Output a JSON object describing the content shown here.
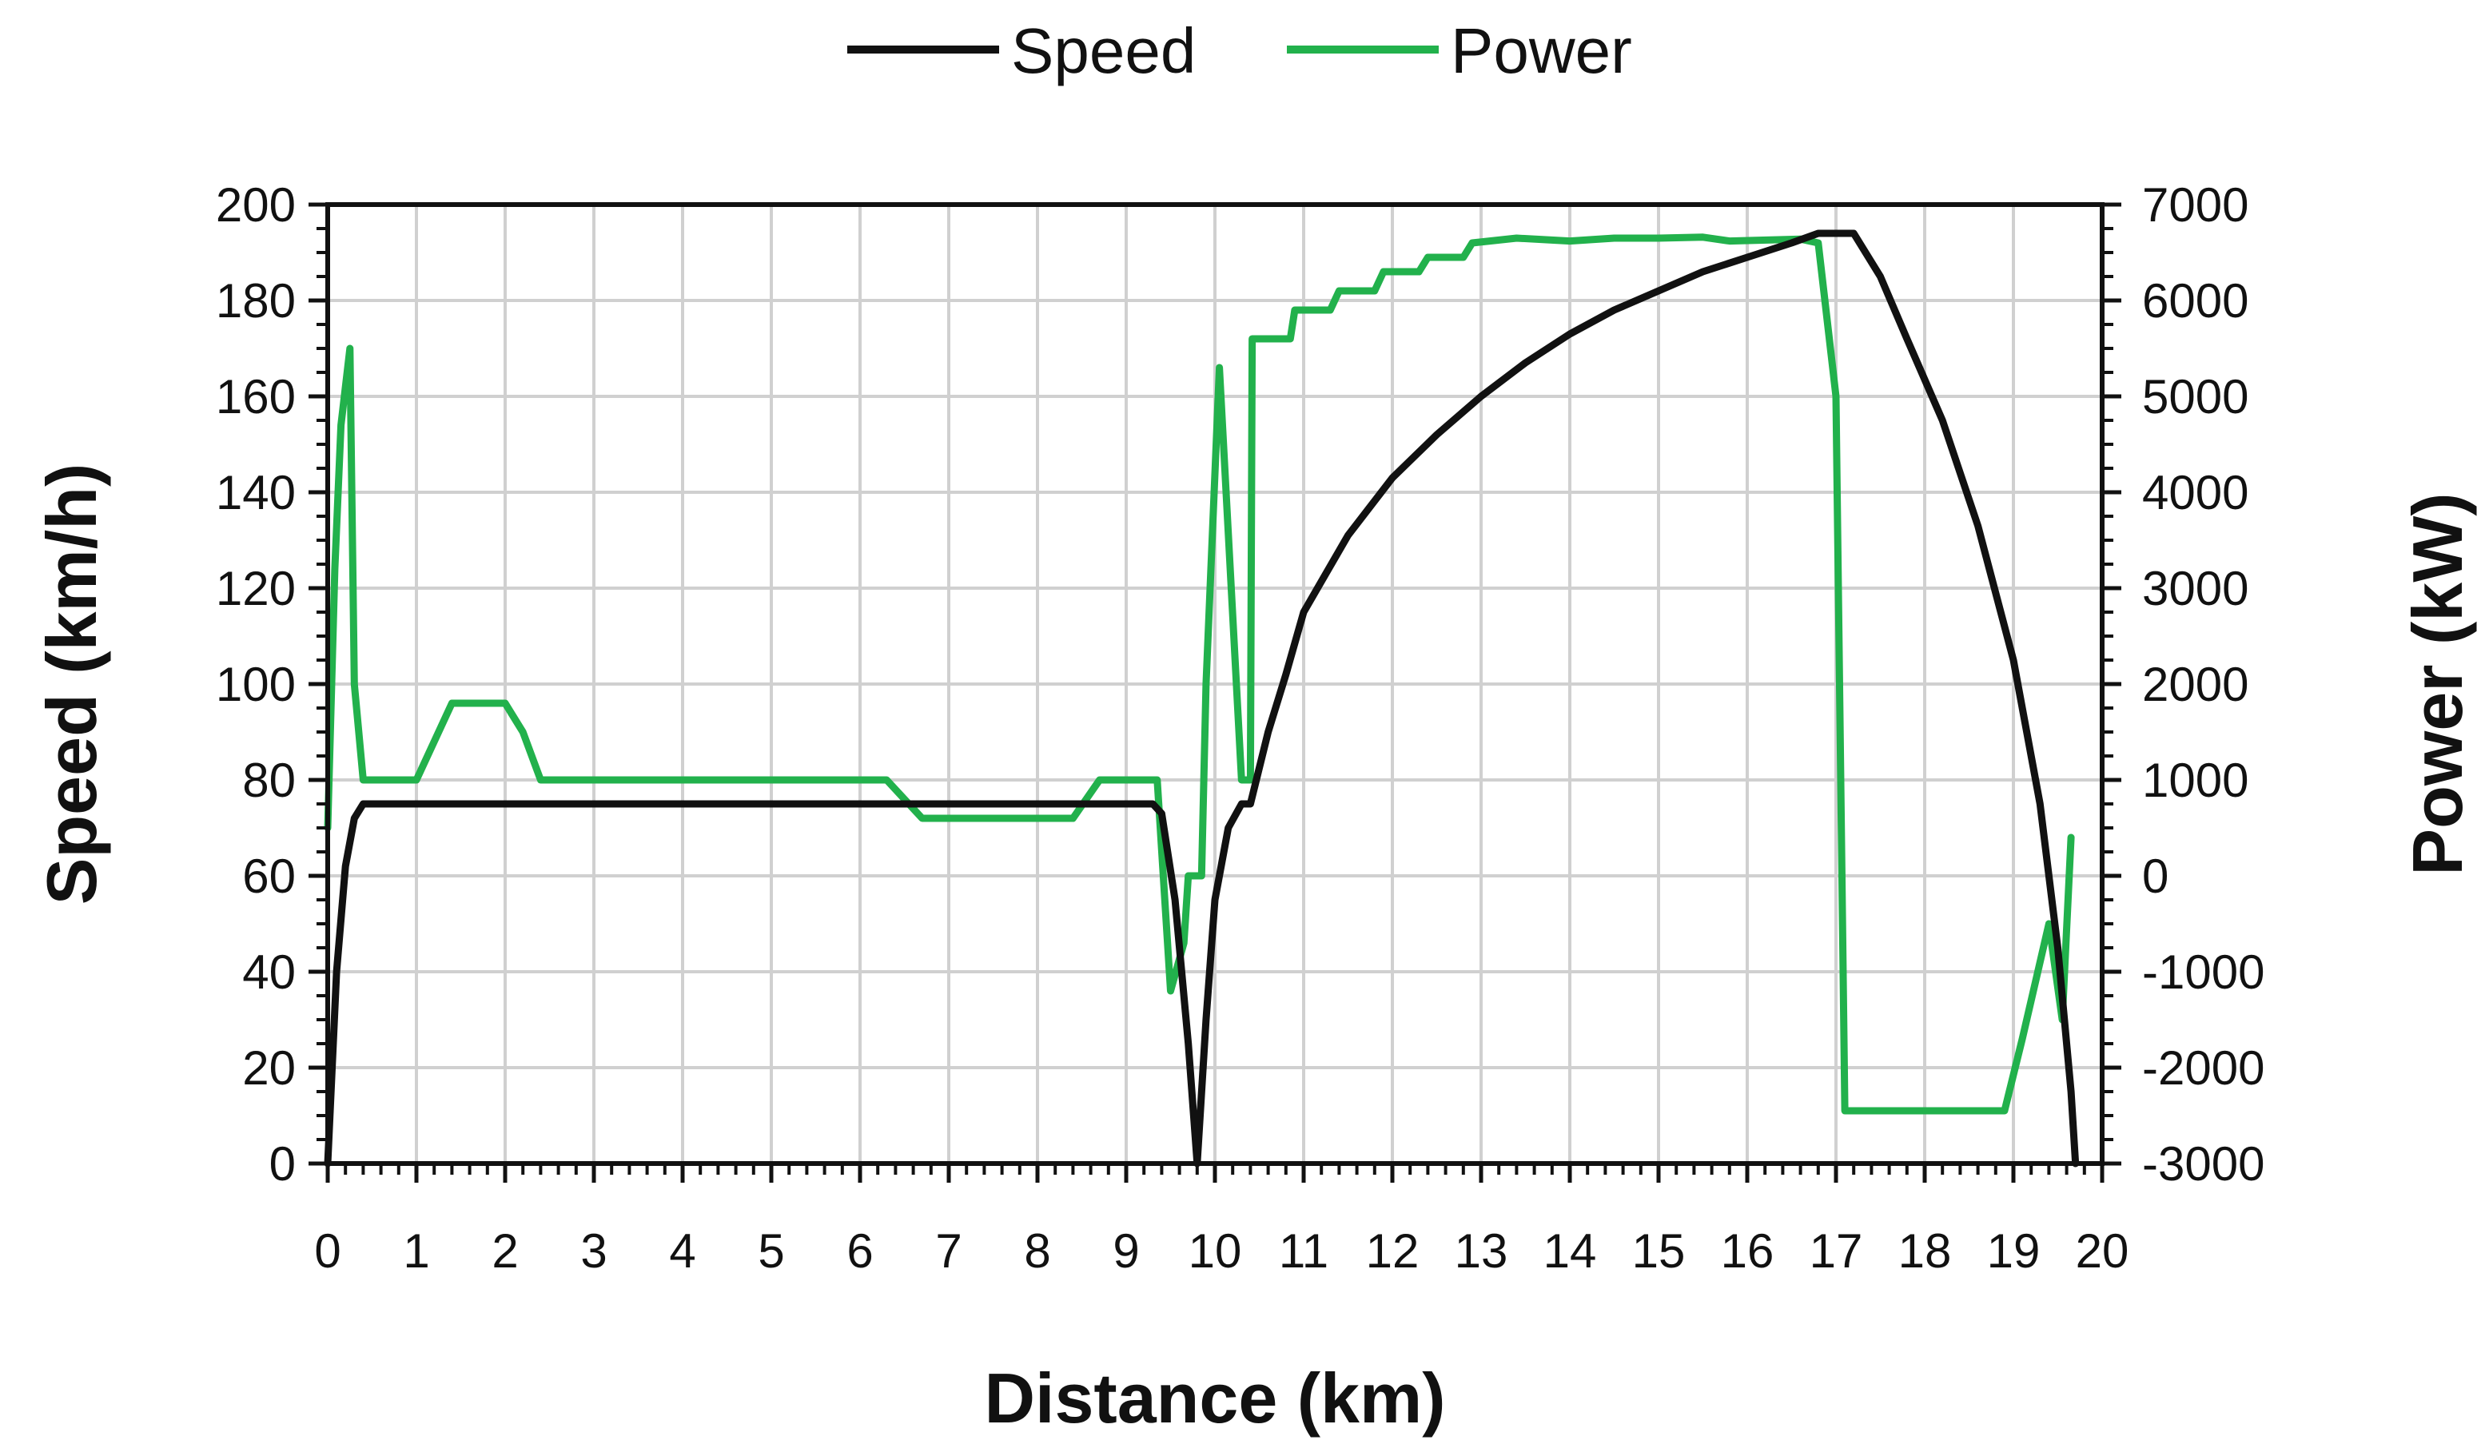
{
  "chart_data": {
    "type": "line",
    "title": "",
    "xlabel": "Distance (km)",
    "ylabel_left": "Speed (km/h)",
    "ylabel_right": "Power (kW)",
    "xlim": [
      0,
      20
    ],
    "ylim_left": [
      0,
      200
    ],
    "ylim_right": [
      -3000,
      7000
    ],
    "grid": true,
    "legend_position": "top-center",
    "x_ticks": [
      "0",
      "1",
      "2",
      "3",
      "4",
      "5",
      "6",
      "7",
      "8",
      "9",
      "10",
      "11",
      "12",
      "13",
      "14",
      "15",
      "16",
      "17",
      "18",
      "19",
      "20"
    ],
    "y_left_ticks": [
      "0",
      "20",
      "40",
      "60",
      "80",
      "100",
      "120",
      "140",
      "160",
      "180",
      "200"
    ],
    "y_right_ticks": [
      "-3000",
      "-2000",
      "-1000",
      "0",
      "1000",
      "2000",
      "3000",
      "4000",
      "5000",
      "6000",
      "7000"
    ],
    "series": [
      {
        "name": "Speed",
        "axis": "left",
        "color": "#111111",
        "points": [
          [
            0,
            0
          ],
          [
            0.1,
            40
          ],
          [
            0.2,
            62
          ],
          [
            0.3,
            72
          ],
          [
            0.4,
            75
          ],
          [
            2,
            75
          ],
          [
            5,
            75
          ],
          [
            8,
            75
          ],
          [
            9.3,
            75
          ],
          [
            9.4,
            73
          ],
          [
            9.55,
            55
          ],
          [
            9.7,
            25
          ],
          [
            9.8,
            0
          ],
          [
            9.9,
            30
          ],
          [
            10.0,
            55
          ],
          [
            10.15,
            70
          ],
          [
            10.3,
            75
          ],
          [
            10.4,
            75
          ],
          [
            10.6,
            90
          ],
          [
            10.8,
            102
          ],
          [
            11.0,
            115
          ],
          [
            11.5,
            131
          ],
          [
            12.0,
            143
          ],
          [
            12.5,
            152
          ],
          [
            13.0,
            160
          ],
          [
            13.5,
            167
          ],
          [
            14.0,
            173
          ],
          [
            14.5,
            178
          ],
          [
            15.0,
            182
          ],
          [
            15.5,
            186
          ],
          [
            16.0,
            189
          ],
          [
            16.5,
            192
          ],
          [
            16.8,
            194
          ],
          [
            17.2,
            194
          ],
          [
            17.5,
            185
          ],
          [
            17.8,
            172
          ],
          [
            18.2,
            155
          ],
          [
            18.6,
            133
          ],
          [
            19.0,
            105
          ],
          [
            19.3,
            75
          ],
          [
            19.5,
            45
          ],
          [
            19.65,
            15
          ],
          [
            19.7,
            0
          ]
        ]
      },
      {
        "name": "Power",
        "axis": "right",
        "color": "#22b14c",
        "points": [
          [
            0,
            500
          ],
          [
            0.08,
            3200
          ],
          [
            0.15,
            4700
          ],
          [
            0.25,
            5500
          ],
          [
            0.3,
            2000
          ],
          [
            0.4,
            1000
          ],
          [
            1.0,
            1000
          ],
          [
            1.4,
            1800
          ],
          [
            2.0,
            1800
          ],
          [
            2.2,
            1500
          ],
          [
            2.4,
            1000
          ],
          [
            6.3,
            1000
          ],
          [
            6.7,
            600
          ],
          [
            8.4,
            600
          ],
          [
            8.7,
            1000
          ],
          [
            9.35,
            1000
          ],
          [
            9.5,
            -1200
          ],
          [
            9.65,
            -700
          ],
          [
            9.7,
            0
          ],
          [
            9.85,
            0
          ],
          [
            9.9,
            2000
          ],
          [
            10.05,
            5300
          ],
          [
            10.3,
            1000
          ],
          [
            10.4,
            1000
          ],
          [
            10.42,
            5600
          ],
          [
            10.85,
            5600
          ],
          [
            10.9,
            5900
          ],
          [
            11.3,
            5900
          ],
          [
            11.4,
            6100
          ],
          [
            11.8,
            6100
          ],
          [
            11.9,
            6300
          ],
          [
            12.3,
            6300
          ],
          [
            12.4,
            6450
          ],
          [
            12.8,
            6450
          ],
          [
            12.9,
            6600
          ],
          [
            13.4,
            6650
          ],
          [
            14.0,
            6620
          ],
          [
            14.5,
            6650
          ],
          [
            15.0,
            6650
          ],
          [
            15.5,
            6660
          ],
          [
            15.8,
            6620
          ],
          [
            16.6,
            6640
          ],
          [
            16.8,
            6600
          ],
          [
            17.0,
            5000
          ],
          [
            17.1,
            -2450
          ],
          [
            18.9,
            -2450
          ],
          [
            19.1,
            -1700
          ],
          [
            19.4,
            -500
          ],
          [
            19.55,
            -1500
          ],
          [
            19.65,
            400
          ]
        ]
      }
    ]
  }
}
